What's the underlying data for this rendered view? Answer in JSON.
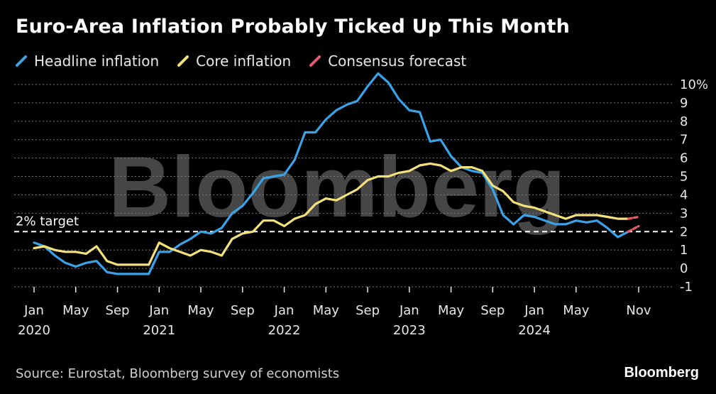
{
  "title": "Euro-Area Inflation Probably Ticked Up This Month",
  "legend": [
    {
      "label": "Headline inflation",
      "color": "#3aa3e8"
    },
    {
      "label": "Core inflation",
      "color": "#f5e17a"
    },
    {
      "label": "Consensus forecast",
      "color": "#e85a6a"
    }
  ],
  "source": "Source: Eurostat, Bloomberg survey of economists",
  "brand": "Bloomberg",
  "watermark": "Bloomberg",
  "chart_data": {
    "type": "line",
    "title": "Euro-Area Inflation Probably Ticked Up This Month",
    "xlabel": "",
    "ylabel": "",
    "ylim": [
      -1,
      10
    ],
    "y_ticks": [
      {
        "value": 10,
        "label": "10%"
      },
      {
        "value": 9,
        "label": "9"
      },
      {
        "value": 8,
        "label": "8"
      },
      {
        "value": 7,
        "label": "7"
      },
      {
        "value": 6,
        "label": "6"
      },
      {
        "value": 5,
        "label": "5"
      },
      {
        "value": 4,
        "label": "4"
      },
      {
        "value": 3,
        "label": "3"
      },
      {
        "value": 2,
        "label": "2"
      },
      {
        "value": 1,
        "label": "1"
      },
      {
        "value": 0,
        "label": "0"
      },
      {
        "value": -1,
        "label": "-1"
      }
    ],
    "x_start": "2020-01",
    "x_range": [
      0,
      58
    ],
    "x_ticks": [
      {
        "index": 0,
        "label": "Jan",
        "year": "2020"
      },
      {
        "index": 4,
        "label": "May",
        "year": ""
      },
      {
        "index": 8,
        "label": "Sep",
        "year": ""
      },
      {
        "index": 12,
        "label": "Jan",
        "year": "2021"
      },
      {
        "index": 16,
        "label": "May",
        "year": ""
      },
      {
        "index": 20,
        "label": "Sep",
        "year": ""
      },
      {
        "index": 24,
        "label": "Jan",
        "year": "2022"
      },
      {
        "index": 28,
        "label": "May",
        "year": ""
      },
      {
        "index": 32,
        "label": "Sep",
        "year": ""
      },
      {
        "index": 36,
        "label": "Jan",
        "year": "2023"
      },
      {
        "index": 40,
        "label": "May",
        "year": ""
      },
      {
        "index": 44,
        "label": "Sep",
        "year": ""
      },
      {
        "index": 48,
        "label": "Jan",
        "year": "2024"
      },
      {
        "index": 52,
        "label": "May",
        "year": ""
      },
      {
        "index": 58,
        "label": "Nov",
        "year": ""
      }
    ],
    "reference_line": {
      "value": 2,
      "label": "2% target"
    },
    "series": [
      {
        "name": "Headline inflation",
        "color": "#3aa3e8",
        "values": [
          1.4,
          1.2,
          0.7,
          0.3,
          0.1,
          0.3,
          0.4,
          -0.2,
          -0.3,
          -0.3,
          -0.3,
          -0.3,
          0.9,
          0.9,
          1.3,
          1.6,
          2.0,
          1.9,
          2.2,
          3.0,
          3.4,
          4.1,
          4.9,
          5.0,
          5.1,
          5.9,
          7.4,
          7.4,
          8.1,
          8.6,
          8.9,
          9.1,
          9.9,
          10.6,
          10.1,
          9.2,
          8.6,
          8.5,
          6.9,
          7.0,
          6.1,
          5.5,
          5.3,
          5.2,
          4.3,
          2.9,
          2.4,
          2.9,
          2.8,
          2.6,
          2.4,
          2.4,
          2.6,
          2.5,
          2.6,
          2.2,
          1.7,
          2.0
        ]
      },
      {
        "name": "Core inflation",
        "color": "#f5e17a",
        "values": [
          1.1,
          1.2,
          1.0,
          0.9,
          0.9,
          0.8,
          1.2,
          0.4,
          0.2,
          0.2,
          0.2,
          0.2,
          1.4,
          1.1,
          0.9,
          0.7,
          1.0,
          0.9,
          0.7,
          1.6,
          1.9,
          2.0,
          2.6,
          2.6,
          2.3,
          2.7,
          2.9,
          3.5,
          3.8,
          3.7,
          4.0,
          4.3,
          4.8,
          5.0,
          5.0,
          5.2,
          5.3,
          5.6,
          5.7,
          5.6,
          5.3,
          5.5,
          5.5,
          5.3,
          4.5,
          4.2,
          3.6,
          3.4,
          3.3,
          3.1,
          2.9,
          2.7,
          2.9,
          2.9,
          2.9,
          2.8,
          2.7,
          2.7
        ]
      },
      {
        "name": "Consensus forecast",
        "color": "#e85a6a",
        "segments": [
          {
            "x": [
              57,
              58
            ],
            "values": [
              2.7,
              2.8
            ]
          },
          {
            "x": [
              57,
              58
            ],
            "values": [
              2.0,
              2.3
            ]
          }
        ]
      }
    ]
  }
}
